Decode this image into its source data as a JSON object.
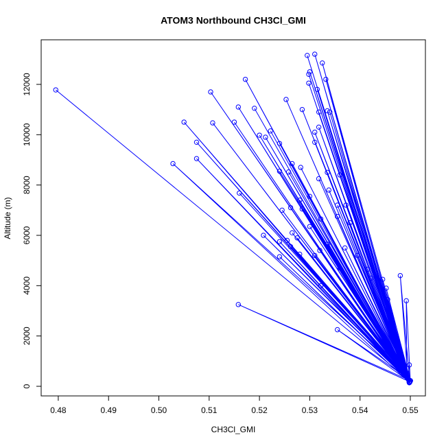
{
  "chart_data": {
    "type": "line",
    "title": "ATOM3 Northbound CH3Cl_GMI",
    "x_label": "CH3Cl_GMI",
    "y_label": "Altitude (m)",
    "x": [
      0.4795,
      0.5497,
      0.5295,
      0.5499,
      0.531,
      0.5495,
      0.5325,
      0.55,
      0.53,
      0.5493,
      0.5298,
      0.5498,
      0.5172,
      0.5497,
      0.5332,
      0.5499,
      0.5298,
      0.5495,
      0.5103,
      0.55,
      0.5315,
      0.5493,
      0.5253,
      0.5498,
      0.5158,
      0.5497,
      0.519,
      0.5499,
      0.5285,
      0.5495,
      0.5318,
      0.55,
      0.5335,
      0.5493,
      0.534,
      0.5498,
      0.505,
      0.5497,
      0.5107,
      0.5499,
      0.515,
      0.5495,
      0.5318,
      0.55,
      0.531,
      0.5493,
      0.52,
      0.5498,
      0.5212,
      0.5497,
      0.5222,
      0.5499,
      0.5075,
      0.5495,
      0.524,
      0.55,
      0.531,
      0.5493,
      0.5028,
      0.5498,
      0.5075,
      0.5497,
      0.5265,
      0.5499,
      0.5282,
      0.5495,
      0.524,
      0.55,
      0.5258,
      0.5493,
      0.5335,
      0.5498,
      0.536,
      0.5497,
      0.5318,
      0.5499,
      0.5338,
      0.5495,
      0.516,
      0.55,
      0.528,
      0.5493,
      0.53,
      0.5498,
      0.5355,
      0.5497,
      0.5372,
      0.5499,
      0.5262,
      0.5495,
      0.5245,
      0.55,
      0.5285,
      0.5493,
      0.5355,
      0.5498,
      0.5322,
      0.5497,
      0.538,
      0.5499,
      0.5265,
      0.5495,
      0.53,
      0.55,
      0.5208,
      0.5493,
      0.5255,
      0.5498,
      0.524,
      0.5497,
      0.5275,
      0.5499,
      0.5335,
      0.5495,
      0.537,
      0.55,
      0.5395,
      0.5493,
      0.532,
      0.5498,
      0.528,
      0.5497,
      0.524,
      0.5499,
      0.5262,
      0.5495,
      0.531,
      0.55,
      0.536,
      0.5493,
      0.5415,
      0.5498,
      0.5422,
      0.5497,
      0.5445,
      0.5499,
      0.548,
      0.5495,
      0.5452,
      0.55,
      0.5492,
      0.5493,
      0.5455,
      0.5498,
      0.5322,
      0.5497,
      0.5158,
      0.5499,
      0.5355,
      0.5495,
      0.5498,
      0.55
    ],
    "series": [
      {
        "color": "#0000ff",
        "values": [
          11780,
          250,
          13150,
          180,
          13200,
          320,
          12850,
          220,
          12500,
          400,
          12400,
          150,
          12200,
          250,
          12200,
          180,
          12050,
          320,
          11700,
          220,
          11800,
          400,
          11400,
          150,
          11100,
          250,
          11050,
          180,
          11000,
          320,
          10900,
          220,
          10950,
          400,
          10900,
          150,
          10500,
          250,
          10470,
          180,
          10500,
          320,
          10300,
          220,
          10100,
          400,
          9980,
          150,
          9900,
          250,
          10150,
          180,
          9700,
          320,
          9650,
          220,
          9700,
          400,
          8850,
          150,
          9050,
          250,
          8850,
          180,
          8700,
          320,
          8550,
          220,
          8520,
          400,
          8500,
          150,
          8400,
          250,
          8250,
          180,
          7800,
          320,
          7680,
          220,
          7400,
          400,
          7550,
          150,
          7200,
          250,
          7200,
          180,
          7100,
          320,
          7000,
          220,
          7050,
          400,
          6750,
          150,
          6650,
          250,
          6500,
          180,
          6100,
          320,
          6350,
          220,
          6000,
          400,
          5800,
          150,
          5750,
          250,
          5900,
          180,
          5650,
          320,
          5500,
          220,
          5200,
          400,
          5400,
          150,
          5250,
          250,
          5150,
          180,
          5550,
          320,
          5200,
          220,
          4700,
          400,
          4650,
          150,
          4300,
          250,
          4250,
          180,
          4400,
          320,
          3900,
          220,
          3400,
          400,
          3450,
          150,
          4000,
          250,
          3250,
          180,
          2250,
          320,
          850,
          220
        ]
      }
    ],
    "xlim": [
      0.4766,
      0.553
    ],
    "ylim": [
      -382,
      13772
    ],
    "xticks": [
      0.48,
      0.49,
      {
        "value": 0.5,
        "label": "0.50"
      },
      0.51,
      0.52,
      0.53,
      0.54,
      0.55
    ],
    "yticks": [
      0,
      2000,
      4000,
      6000,
      8000,
      10000,
      12000
    ],
    "markers": true
  }
}
